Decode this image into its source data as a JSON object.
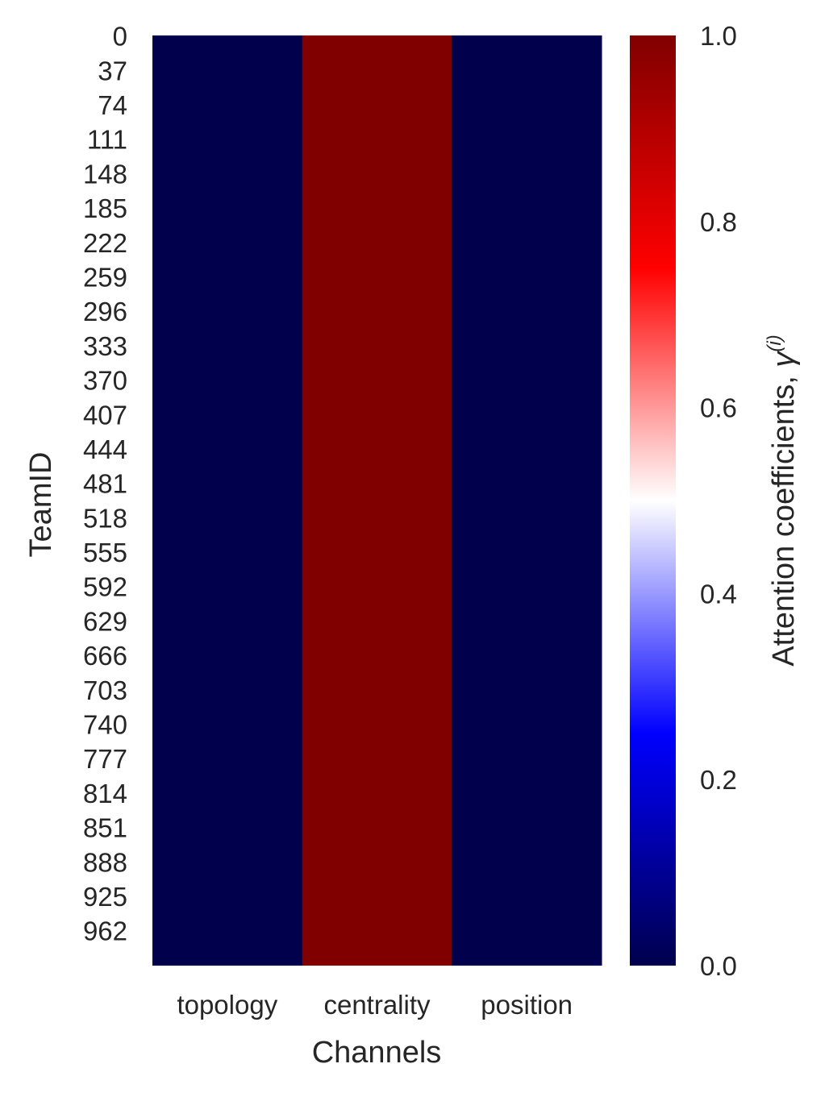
{
  "chart_data": {
    "type": "heatmap",
    "title": "",
    "xlabel": "Channels",
    "ylabel": "TeamID",
    "x_categories": [
      "topology",
      "centrality",
      "position"
    ],
    "y_tick_labels": [
      "0",
      "37",
      "74",
      "111",
      "148",
      "185",
      "222",
      "259",
      "296",
      "333",
      "370",
      "407",
      "444",
      "481",
      "518",
      "555",
      "592",
      "629",
      "666",
      "703",
      "740",
      "777",
      "814",
      "851",
      "888",
      "925",
      "962"
    ],
    "y_range": [
      0,
      999
    ],
    "values_per_column": [
      0.0,
      1.0,
      0.0
    ],
    "colorbar": {
      "label_main": "Attention coefficients, ",
      "label_symbol": "γ",
      "label_sup": "(i)",
      "vmin": 0.0,
      "vmax": 1.0,
      "ticks": [
        "0.0",
        "0.2",
        "0.4",
        "0.6",
        "0.8",
        "1.0"
      ],
      "colormap": "seismic",
      "color_stops": [
        "#00004d",
        "#0000ff",
        "#ffffff",
        "#ff0000",
        "#800000"
      ]
    },
    "grid": false,
    "legend": "colorbar-right"
  }
}
